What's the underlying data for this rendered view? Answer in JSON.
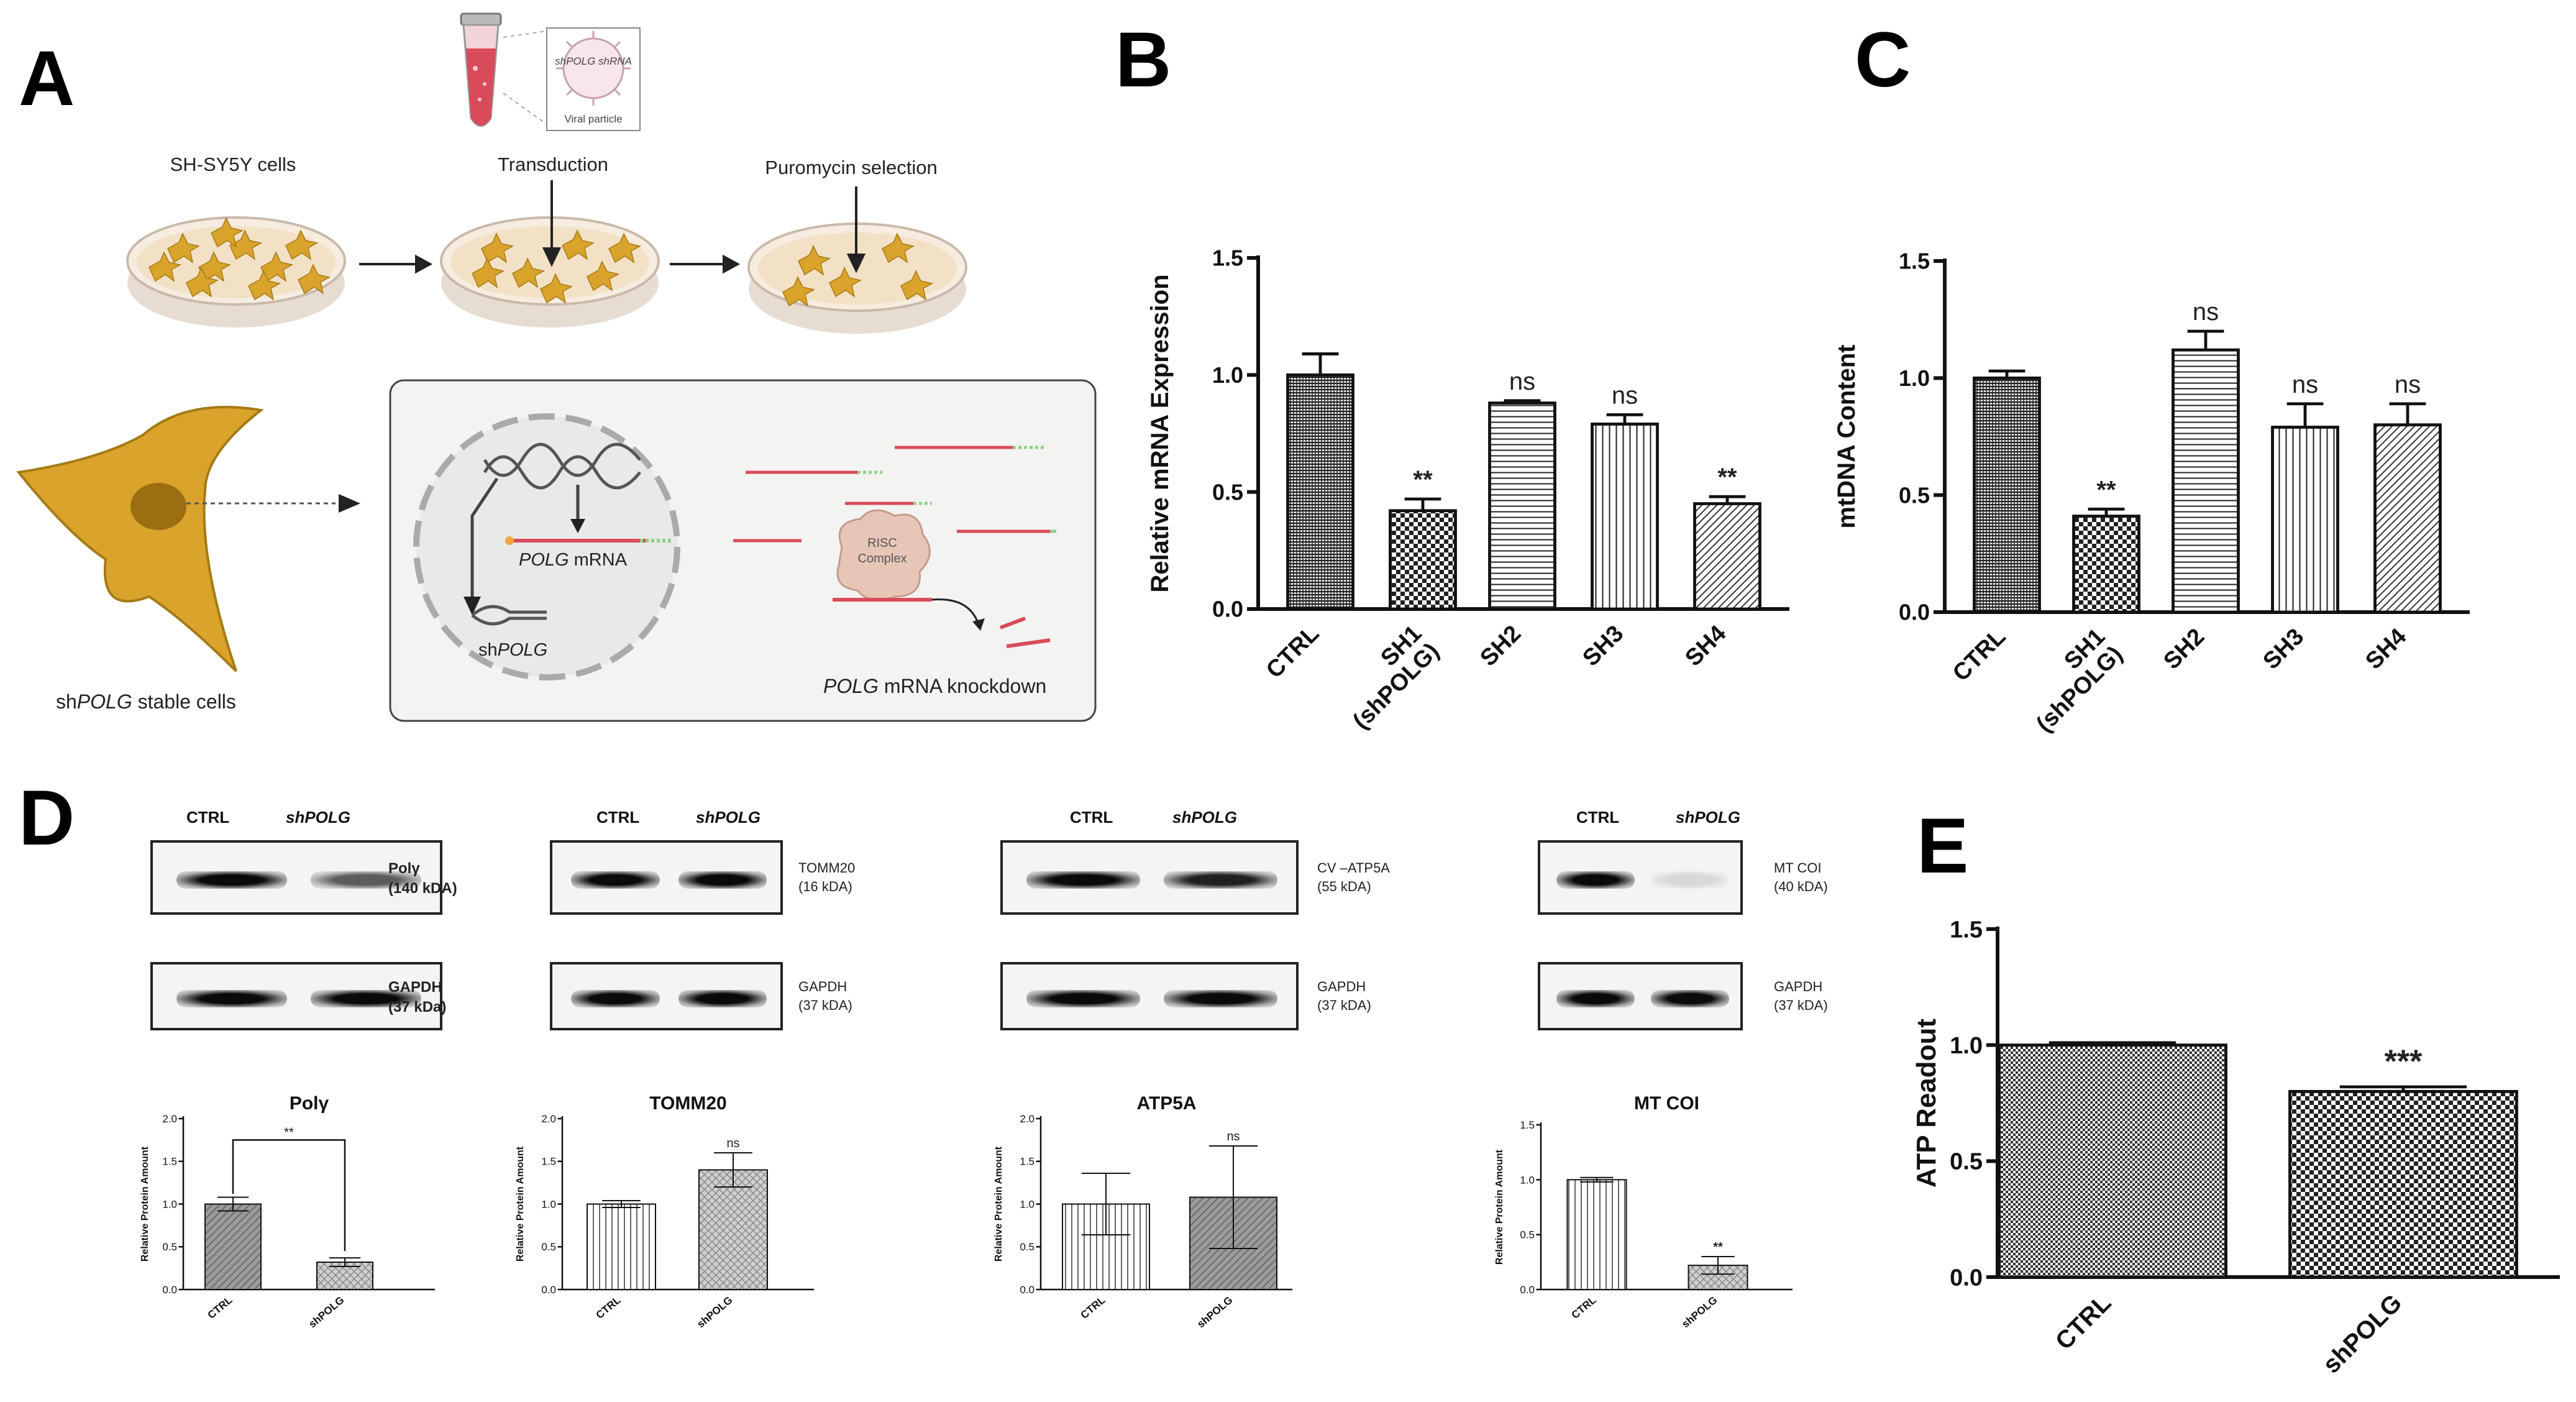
{
  "panels": {
    "a": "A",
    "b": "B",
    "c": "C",
    "d": "D",
    "e": "E"
  },
  "colors": {
    "cell_gold": "#d9a32c",
    "cell_dark": "#a57a14",
    "dish": "#f3e8d8",
    "tube_red": "#d94b5a",
    "bg_box": "#f3f3f1",
    "risc": "#e8c6b7"
  },
  "schematic": {
    "viral_particle": "Viral particle",
    "viral_shrna": "shPOLG shRNA",
    "step1": "SH-SY5Y cells",
    "step2": "Transduction",
    "step3": "Puromycin selection",
    "polg_mrna_italic": "POLG",
    "polg_mrna_rest": " mRNA",
    "sh_prefix": "sh",
    "sh_italic": "POLG",
    "risc_line1": "RISC",
    "risc_line2": "Complex",
    "knockdown_italic": "POLG",
    "knockdown_rest": " mRNA knockdown",
    "stable_prefix": "sh",
    "stable_italic": "POLG",
    "stable_rest": " stable cells"
  },
  "blots": [
    {
      "ctrl": "CTRL",
      "sh": "shPOLG",
      "top_label": "Polγ",
      "top_kda": "(140 kDA)",
      "bottom_label": "GAPDH",
      "bottom_kda": "(37 kDa)",
      "bold": true
    },
    {
      "ctrl": "CTRL",
      "sh": "shPOLG",
      "top_label": "TOMM20",
      "top_kda": "(16 kDA)",
      "bottom_label": "GAPDH",
      "bottom_kda": "(37 kDA)",
      "bold": false
    },
    {
      "ctrl": "CTRL",
      "sh": "shPOLG",
      "top_label": "CV –ATP5A",
      "top_kda": "(55 kDA)",
      "bottom_label": "GAPDH",
      "bottom_kda": "(37 kDA)",
      "bold": false
    },
    {
      "ctrl": "CTRL",
      "sh": "shPOLG",
      "top_label": "MT COI",
      "top_kda": "(40 kDA)",
      "bottom_label": "GAPDH",
      "bottom_kda": "(37 kDA)",
      "bold": false
    }
  ],
  "chart_data": [
    {
      "id": "B",
      "type": "bar",
      "title": "",
      "categories": [
        "CTRL",
        "SH1\n(shPOLG)",
        "SH2",
        "SH3",
        "SH4"
      ],
      "values": [
        1.0,
        0.42,
        0.88,
        0.79,
        0.45
      ],
      "errors": [
        0.09,
        0.05,
        0.01,
        0.04,
        0.03
      ],
      "significance": [
        "",
        "**",
        "ns",
        "ns",
        "**"
      ],
      "ylabel": "Relative mRNA Expression",
      "xlabel": "",
      "ylim": [
        0,
        1.5
      ],
      "yticks": [
        "0.0",
        "0.5",
        "1.0",
        "1.5"
      ]
    },
    {
      "id": "C",
      "type": "bar",
      "title": "",
      "categories": [
        "CTRL",
        "SH1\n(shPOLG)",
        "SH2",
        "SH3",
        "SH4"
      ],
      "values": [
        1.0,
        0.41,
        1.12,
        0.79,
        0.8
      ],
      "errors": [
        0.03,
        0.03,
        0.08,
        0.1,
        0.09
      ],
      "significance": [
        "",
        "**",
        "ns",
        "ns",
        "ns"
      ],
      "ylabel": "mtDNA Content",
      "xlabel": "",
      "ylim": [
        0,
        1.5
      ],
      "yticks": [
        "0.0",
        "0.5",
        "1.0",
        "1.5"
      ]
    },
    {
      "id": "D1",
      "type": "bar",
      "title": "Polγ",
      "categories": [
        "CTRL",
        "shPOLG"
      ],
      "values": [
        1.0,
        0.32
      ],
      "errors": [
        0.08,
        0.05
      ],
      "significance": [
        "",
        ""
      ],
      "bracket": "**",
      "ylabel": "Relative Protein Amount",
      "xlabel": "",
      "ylim": [
        0,
        2.0
      ],
      "yticks": [
        "0.0",
        "0.5",
        "1.0",
        "1.5",
        "2.0"
      ]
    },
    {
      "id": "D2",
      "type": "bar",
      "title": "TOMM20",
      "categories": [
        "CTRL",
        "shPOLG"
      ],
      "values": [
        1.0,
        1.4
      ],
      "errors": [
        0.04,
        0.2
      ],
      "significance": [
        "",
        "ns"
      ],
      "ylabel": "Relative Protein Amount",
      "xlabel": "",
      "ylim": [
        0,
        2.0
      ],
      "yticks": [
        "0.0",
        "0.5",
        "1.0",
        "1.5",
        "2.0"
      ]
    },
    {
      "id": "D3",
      "type": "bar",
      "title": "ATP5A",
      "categories": [
        "CTRL",
        "shPOLG"
      ],
      "values": [
        1.0,
        1.08
      ],
      "errors": [
        0.36,
        0.6
      ],
      "significance": [
        "",
        "ns"
      ],
      "ylabel": "Relative Protein Amount",
      "xlabel": "",
      "ylim": [
        0,
        2.0
      ],
      "yticks": [
        "0.0",
        "0.5",
        "1.0",
        "1.5",
        "2.0"
      ]
    },
    {
      "id": "D4",
      "type": "bar",
      "title": "MT COI",
      "categories": [
        "CTRL",
        "shPOLG"
      ],
      "values": [
        1.0,
        0.22
      ],
      "errors": [
        0.02,
        0.08
      ],
      "significance": [
        "",
        "**"
      ],
      "ylabel": "Relative Protein Amount",
      "xlabel": "",
      "ylim": [
        0,
        1.5
      ],
      "yticks": [
        "0.0",
        "0.5",
        "1.0",
        "1.5"
      ]
    },
    {
      "id": "E",
      "type": "bar",
      "title": "",
      "categories": [
        "CTRL",
        "shPOLG"
      ],
      "values": [
        1.0,
        0.8
      ],
      "errors": [
        0.01,
        0.02
      ],
      "significance": [
        "",
        "***"
      ],
      "ylabel": "ATP Readout",
      "xlabel": "",
      "ylim": [
        0,
        1.5
      ],
      "yticks": [
        "0.0",
        "0.5",
        "1.0",
        "1.5"
      ]
    }
  ]
}
